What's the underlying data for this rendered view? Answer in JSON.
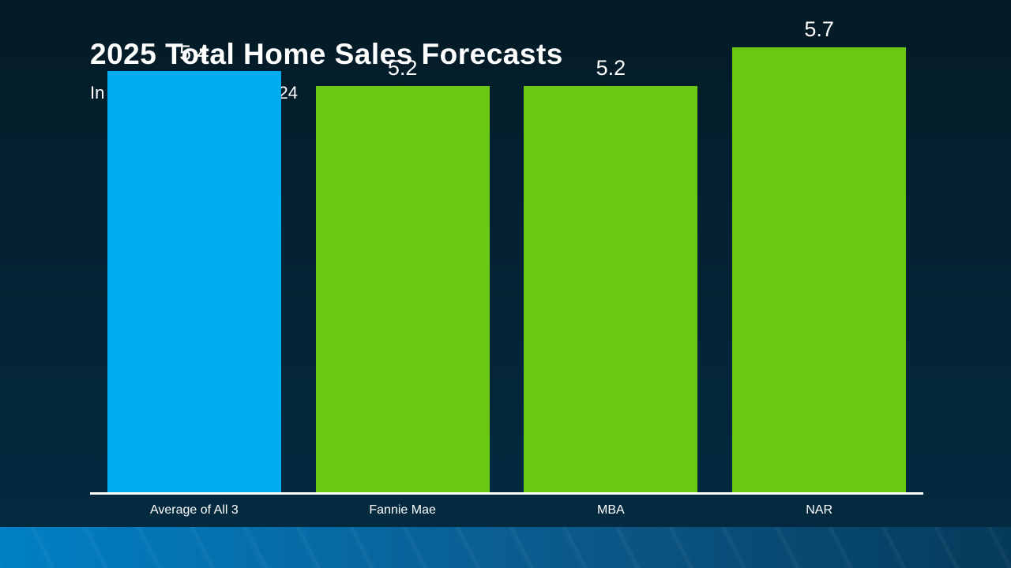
{
  "slide": {
    "title": "2025 Total Home Sales Forecasts",
    "subtitle": "In Millions, As of 8/27/2024"
  },
  "chart_data": {
    "type": "bar",
    "title": "2025 Total Home Sales Forecasts",
    "subtitle": "In Millions, As of 8/27/2024",
    "categories": [
      "Average of All 3",
      "Fannie Mae",
      "MBA",
      "NAR"
    ],
    "values": [
      5.4,
      5.2,
      5.2,
      5.7
    ],
    "value_labels": [
      "5.4",
      "5.2",
      "5.2",
      "5.7"
    ],
    "bar_colors": [
      "#00AEEF",
      "#69C813",
      "#69C813",
      "#69C813"
    ],
    "xlabel": "",
    "ylabel": "",
    "ylim": [
      0,
      6.3
    ],
    "grid": false,
    "legend": "none",
    "data_labels_position": "above-bar",
    "baseline_color": "#FFFFFF"
  },
  "colors": {
    "background_top": "#041B26",
    "background_bottom": "#042A40",
    "text": "#FFFFFF",
    "accent_blue": "#00AEEF",
    "accent_green": "#69C813",
    "footer_gradient_left": "#0080C5",
    "footer_gradient_mid": "#0B5A8C",
    "footer_gradient_right": "#053A5A"
  }
}
